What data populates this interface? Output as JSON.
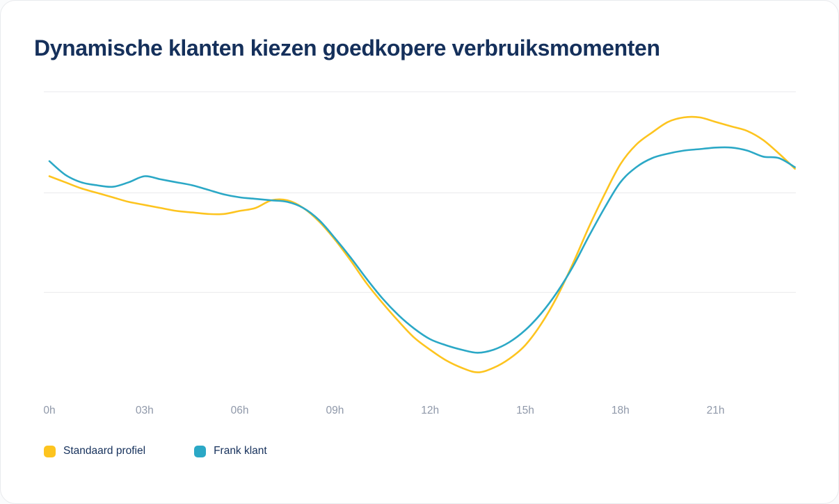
{
  "card": {
    "title": "Dynamische klanten kiezen goedkopere verbruiksmomenten"
  },
  "colors": {
    "standaard": "#FDC41F",
    "frank": "#2BA8C6",
    "title": "#15305B",
    "axis_label": "#8F98A9",
    "grid": "#EAEAEC",
    "background": "#FFFFFF",
    "border": "#E8EAED"
  },
  "chart_data": {
    "type": "line",
    "title": "Dynamische klanten kiezen goedkopere verbruiksmomenten",
    "xlabel": "",
    "ylabel": "",
    "x_unit": "hour",
    "xlim": [
      0,
      23.5
    ],
    "ylim": [
      0,
      100
    ],
    "grid": true,
    "gridlines": [
      100,
      66.5,
      33.5
    ],
    "legend_position": "bottom-left",
    "xticks": [
      {
        "h": 0,
        "label": "0h"
      },
      {
        "h": 3,
        "label": "03h"
      },
      {
        "h": 6,
        "label": "06h"
      },
      {
        "h": 9,
        "label": "09h"
      },
      {
        "h": 12,
        "label": "12h"
      },
      {
        "h": 15,
        "label": "15h"
      },
      {
        "h": 18,
        "label": "18h"
      },
      {
        "h": 21,
        "label": "21h"
      }
    ],
    "x": [
      0,
      0.5,
      1,
      1.5,
      2,
      2.5,
      3,
      3.5,
      4,
      4.5,
      5,
      5.5,
      6,
      6.5,
      7,
      7.5,
      8,
      8.5,
      9,
      9.5,
      10,
      10.5,
      11,
      11.5,
      12,
      12.5,
      13,
      13.5,
      14,
      14.5,
      15,
      15.5,
      16,
      16.5,
      17,
      17.5,
      18,
      18.5,
      19,
      19.5,
      20,
      20.5,
      21,
      21.5,
      22,
      22.5,
      23,
      23.5
    ],
    "series": [
      {
        "name": "Standaard profiel",
        "color_key": "standaard",
        "values": [
          72,
          70,
          68,
          66.5,
          65,
          63.5,
          62.5,
          61.5,
          60.5,
          60,
          59.5,
          59.5,
          60.5,
          61.5,
          64,
          64,
          61.5,
          57,
          51,
          44,
          36.5,
          30,
          24,
          18.5,
          14.5,
          11,
          8.5,
          7,
          8.5,
          11.5,
          16,
          23,
          32,
          43,
          55,
          66,
          76,
          82.5,
          86.5,
          90,
          91.5,
          91.5,
          90,
          88.5,
          87,
          84,
          79.5,
          74.5
        ]
      },
      {
        "name": "Frank klant",
        "color_key": "frank",
        "values": [
          77,
          72.5,
          70,
          69,
          68.5,
          70,
          72,
          71,
          70,
          69,
          67.5,
          66,
          65,
          64.5,
          64,
          63.5,
          61.5,
          57.5,
          51.5,
          45,
          38,
          31.5,
          26,
          21.5,
          18,
          16,
          14.5,
          13.5,
          14.5,
          17,
          21,
          26.5,
          33.5,
          42,
          52,
          61.5,
          70,
          75,
          78,
          79.5,
          80.5,
          81,
          81.5,
          81.5,
          80.5,
          78.5,
          78,
          75
        ]
      }
    ]
  }
}
